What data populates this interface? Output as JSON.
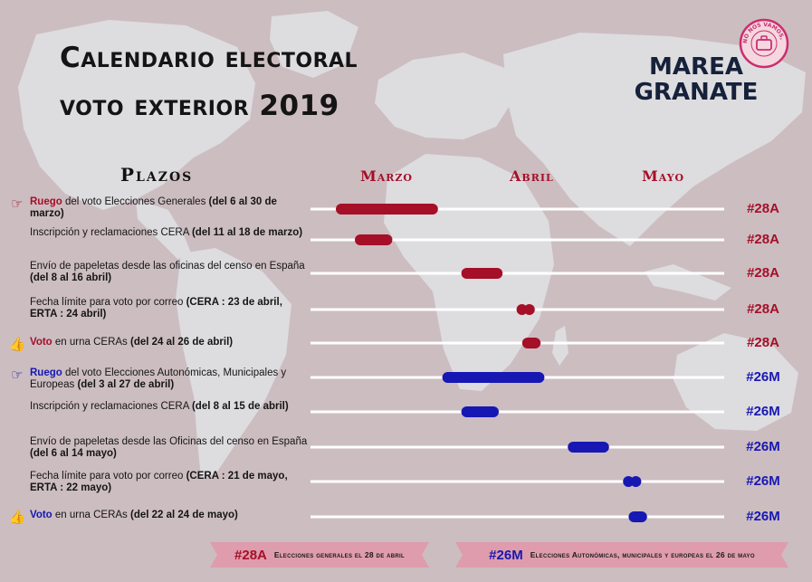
{
  "title": {
    "line1": "Calendario electoral",
    "line2": "voto exterior 2019"
  },
  "logo": {
    "line1": "MAREA",
    "line2": "GRANATE",
    "stamp_text": "NO NOS VAMOS, NOS ECHAN"
  },
  "section_heading": "Plazos",
  "months": [
    "Marzo",
    "Abril",
    "Mayo"
  ],
  "colors": {
    "red": "#a50f27",
    "blue": "#1717b4",
    "background": "#ccbdc1",
    "map": "#dddcdf",
    "track": "#ffffff",
    "footer": "#de9cac"
  },
  "chart_data": {
    "type": "timeline",
    "title": "Calendario electoral voto exterior 2019",
    "x_axis": {
      "type": "date",
      "range": [
        "2019-03-01",
        "2019-05-31"
      ],
      "ticks": [
        "Marzo",
        "Abril",
        "Mayo"
      ]
    },
    "rows": [
      {
        "pre": "Ruego",
        "mid": " del voto Elecciones Generales ",
        "post": "(del 6 al 30 de marzo)",
        "start": "2019-03-06",
        "end": "2019-03-30",
        "style": "bar",
        "series": "28A",
        "tag": "#28A",
        "icon": "pointing-hand-icon"
      },
      {
        "pre": "",
        "mid": "Inscripción y reclamaciones CERA ",
        "post": "(del 11 al 18 de marzo)",
        "start": "2019-03-11",
        "end": "2019-03-18",
        "style": "bar",
        "series": "28A",
        "tag": "#28A",
        "icon": ""
      },
      {
        "pre": "",
        "mid": "Envío de papeletas desde las oficinas del censo en España ",
        "post": "(del 8 al 16 abril)",
        "start": "2019-04-08",
        "end": "2019-04-16",
        "style": "bar",
        "series": "28A",
        "tag": "#28A",
        "icon": ""
      },
      {
        "pre": "",
        "mid": "Fecha límite para voto por correo ",
        "post": "(CERA : 23 de abril, ERTA : 24 abril)",
        "dates": [
          "2019-04-23",
          "2019-04-24"
        ],
        "style": "dots",
        "series": "28A",
        "tag": "#28A",
        "icon": ""
      },
      {
        "pre": "Voto",
        "mid": " en urna CERAs ",
        "post": "(del 24 al 26 de abril)",
        "start": "2019-04-24",
        "end": "2019-04-26",
        "style": "bar",
        "series": "28A",
        "tag": "#28A",
        "icon": "thumbs-up-icon"
      },
      {
        "pre": "Ruego",
        "mid": " del voto Elecciones Autonómicas, Municipales y Europeas ",
        "post": "(del 3 al 27 de abril)",
        "start": "2019-04-03",
        "end": "2019-04-27",
        "style": "bar",
        "series": "26M",
        "tag": "#26M",
        "icon": "pointing-hand-icon"
      },
      {
        "pre": "",
        "mid": "Inscripción y reclamaciones CERA ",
        "post": "(del 8 al 15 de abril)",
        "start": "2019-04-08",
        "end": "2019-04-15",
        "style": "bar",
        "series": "26M",
        "tag": "#26M",
        "icon": ""
      },
      {
        "pre": "",
        "mid": "Envío de papeletas desde las Oficinas del censo en España ",
        "post": "(del 6 al 14 mayo)",
        "start": "2019-05-06",
        "end": "2019-05-14",
        "style": "bar",
        "series": "26M",
        "tag": "#26M",
        "icon": ""
      },
      {
        "pre": "",
        "mid": "Fecha límite para voto por correo ",
        "post": "(CERA : 21 de mayo, ERTA : 22 mayo)",
        "dates": [
          "2019-05-21",
          "2019-05-22"
        ],
        "style": "dots",
        "series": "26M",
        "tag": "#26M",
        "icon": ""
      },
      {
        "pre": "Voto",
        "mid": " en urna CERAs ",
        "post": "(del 22 al 24 de mayo)",
        "start": "2019-05-22",
        "end": "2019-05-24",
        "style": "bar",
        "series": "26M",
        "tag": "#26M",
        "icon": "thumbs-up-icon"
      }
    ],
    "legend": [
      {
        "series": "28A",
        "tag": "#28A",
        "label": "Elecciones generales el 28 de abril"
      },
      {
        "series": "26M",
        "tag": "#26M",
        "label": "Elecciones Autonómicas, municipales y europeas el 26 de mayo"
      }
    ]
  }
}
